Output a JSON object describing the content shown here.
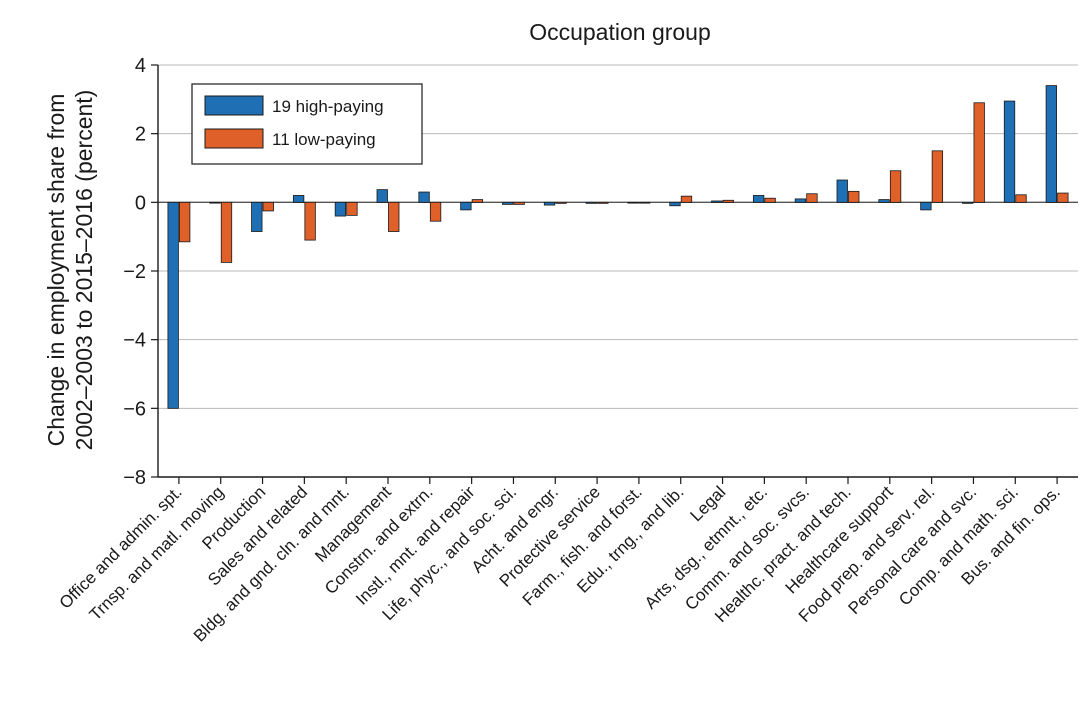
{
  "chart_data": {
    "type": "bar",
    "title": "Occupation group",
    "ylabel_line1": "Change in employment share from",
    "ylabel_line2": "2002–2003 to 2015–2016 (percent)",
    "ylim": [
      -8,
      4
    ],
    "yticks": [
      4,
      2,
      0,
      -2,
      -4,
      -6,
      -8
    ],
    "ytick_labels": [
      "4",
      "2",
      "0",
      "−2",
      "−4",
      "−6",
      "−8"
    ],
    "grid": true,
    "legend_position": "top-left",
    "categories": [
      "Office and admin. spt.",
      "Trnsp. and matl. moving",
      "Production",
      "Sales and related",
      "Bldg. and gnd. cln. and mnt.",
      "Management",
      "Constrn. and extrn.",
      "Instl., mnt. and repair",
      "Life, phyc., and soc. sci.",
      "Acht. and engr.",
      "Protective service",
      "Farm., fish. and forst.",
      "Edu., trng., and lib.",
      "Legal",
      "Arts, dsg., etmnt., etc.",
      "Comm. and soc. svcs.",
      "Healthc. pract. and tech.",
      "Healthcare support",
      "Food prep. and serv. rel.",
      "Personal care and svc.",
      "Comp. and math. sci.",
      "Bus. and fin. ops."
    ],
    "series": [
      {
        "name": "19 high-paying",
        "color": "#1f6fb4",
        "values": [
          -6.0,
          0.0,
          -0.85,
          0.2,
          -0.4,
          0.37,
          0.3,
          -0.22,
          -0.06,
          -0.08,
          -0.03,
          -0.02,
          -0.1,
          0.04,
          0.2,
          0.1,
          0.65,
          0.08,
          -0.22,
          -0.03,
          2.95,
          3.4
        ]
      },
      {
        "name": "11 low-paying",
        "color": "#e0602a",
        "values": [
          -1.15,
          -1.75,
          -0.25,
          -1.1,
          -0.38,
          -0.85,
          -0.55,
          0.08,
          -0.06,
          -0.03,
          -0.03,
          -0.02,
          0.18,
          0.06,
          0.12,
          0.25,
          0.32,
          0.92,
          1.5,
          2.9,
          0.22,
          0.27
        ]
      }
    ]
  }
}
